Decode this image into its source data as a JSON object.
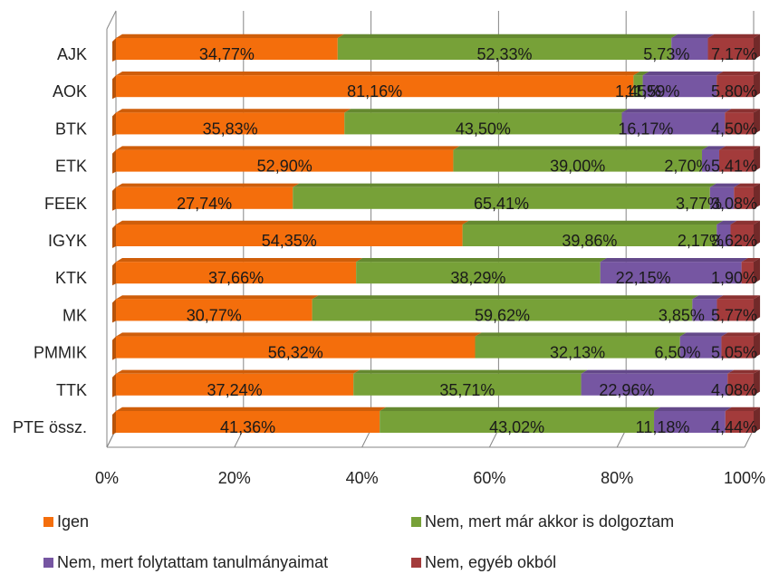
{
  "chart_data": {
    "type": "bar",
    "orientation": "horizontal",
    "stacked": "percent",
    "style": "3d",
    "categories": [
      "AJK",
      "AOK",
      "BTK",
      "ETK",
      "FEEK",
      "IGYK",
      "KTK",
      "MK",
      "PMMIK",
      "TTK",
      "PTE össz."
    ],
    "series": [
      {
        "name": "Igen",
        "color": "#f46e0c",
        "values": [
          34.77,
          81.16,
          35.83,
          52.9,
          27.74,
          54.35,
          37.66,
          30.77,
          56.32,
          37.24,
          41.36
        ],
        "labels": [
          "34,77%",
          "81,16%",
          "35,83%",
          "52,90%",
          "27,74%",
          "54,35%",
          "37,66%",
          "30,77%",
          "56,32%",
          "37,24%",
          "41,36%"
        ]
      },
      {
        "name": "Nem, mert már akkor is dolgoztam",
        "color": "#77a138",
        "values": [
          52.33,
          1.45,
          43.5,
          39.0,
          65.41,
          39.86,
          38.29,
          59.62,
          32.13,
          35.71,
          43.02
        ],
        "labels": [
          "52,33%",
          "1,45%",
          "43,50%",
          "39,00%",
          "65,41%",
          "39,86%",
          "38,29%",
          "59,62%",
          "32,13%",
          "35,71%",
          "43,02%"
        ]
      },
      {
        "name": "Nem, mert folytattam tanulmányaimat",
        "color": "#7656a2",
        "values": [
          5.73,
          11.59,
          16.17,
          2.7,
          3.77,
          2.17,
          22.15,
          3.85,
          6.5,
          22.96,
          11.18
        ],
        "labels": [
          "5,73%",
          "11,59%",
          "16,17%",
          "2,70%",
          "3,77%",
          "2,17%",
          "22,15%",
          "3,85%",
          "6,50%",
          "22,96%",
          "11,18%"
        ]
      },
      {
        "name": "Nem, egyéb okból",
        "color": "#a33b3b",
        "values": [
          7.17,
          5.8,
          4.5,
          5.41,
          3.08,
          3.62,
          1.9,
          5.77,
          5.05,
          4.08,
          4.44
        ],
        "labels": [
          "7,17%",
          "5,80%",
          "4,50%",
          "5,41%",
          "3,08%",
          "3,62%",
          "1,90%",
          "5,77%",
          "5,05%",
          "4,08%",
          "4,44%"
        ]
      }
    ],
    "x_ticks": [
      "0%",
      "20%",
      "40%",
      "60%",
      "80%",
      "100%"
    ],
    "xlim": [
      0,
      100
    ],
    "grid": true,
    "legend_position": "bottom"
  }
}
